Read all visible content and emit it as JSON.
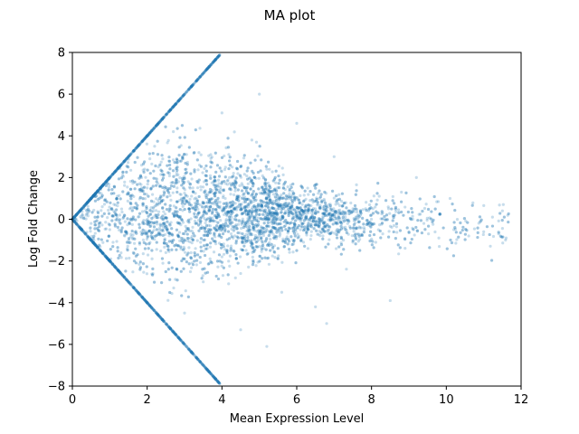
{
  "chart_data": {
    "type": "scatter",
    "title": "MA plot",
    "xlabel": "Mean Expression Level",
    "ylabel": "Log Fold Change",
    "xlim": [
      0,
      12
    ],
    "ylim": [
      -8,
      8
    ],
    "xticks": [
      "0",
      "2",
      "4",
      "6",
      "8",
      "10",
      "12"
    ],
    "yticks": [
      "8",
      "6",
      "4",
      "2",
      "0",
      "−2",
      "−4",
      "−6",
      "−8"
    ],
    "grid": false,
    "legend": "none",
    "point_color": "#1f77b4",
    "point_alpha": 0.25,
    "series": [
      {
        "points": [
          [
            0.3,
            0.1
          ],
          [
            0.5,
            -0.2
          ],
          [
            0.8,
            0.6
          ],
          [
            1.0,
            -0.5
          ],
          [
            1.2,
            1.1
          ],
          [
            1.4,
            -0.8
          ],
          [
            1.6,
            0.4
          ],
          [
            1.8,
            -1.2
          ],
          [
            2.0,
            1.5
          ],
          [
            2.1,
            -0.3
          ],
          [
            2.3,
            0.9
          ],
          [
            2.5,
            -1.6
          ],
          [
            2.6,
            2.2
          ],
          [
            2.8,
            0.2
          ],
          [
            3.0,
            -0.7
          ],
          [
            3.1,
            1.8
          ],
          [
            3.2,
            -2.1
          ],
          [
            3.3,
            0.5
          ],
          [
            3.4,
            2.6
          ],
          [
            3.5,
            -1.0
          ],
          [
            3.6,
            0.8
          ],
          [
            3.7,
            3.1
          ],
          [
            3.8,
            -0.4
          ],
          [
            3.9,
            1.4
          ],
          [
            4.0,
            -1.8
          ],
          [
            4.1,
            0.3
          ],
          [
            4.2,
            2.0
          ],
          [
            4.3,
            -0.9
          ],
          [
            4.4,
            1.1
          ],
          [
            4.5,
            -2.6
          ],
          [
            4.6,
            0.6
          ],
          [
            4.7,
            1.7
          ],
          [
            4.8,
            -0.2
          ],
          [
            4.9,
            0.9
          ],
          [
            5.0,
            -1.3
          ],
          [
            5.1,
            0.4
          ],
          [
            5.2,
            2.4
          ],
          [
            5.3,
            -0.6
          ],
          [
            5.4,
            0.1
          ],
          [
            5.5,
            -1.9
          ],
          [
            5.6,
            0.7
          ],
          [
            5.7,
            -0.3
          ],
          [
            5.8,
            1.2
          ],
          [
            5.9,
            -1.0
          ],
          [
            6.0,
            0.2
          ],
          [
            6.1,
            -0.5
          ],
          [
            6.2,
            0.9
          ],
          [
            6.3,
            -1.4
          ],
          [
            6.4,
            -0.1
          ],
          [
            6.5,
            0.5
          ],
          [
            6.7,
            -0.8
          ],
          [
            6.9,
            0.3
          ],
          [
            7.1,
            -0.6
          ],
          [
            7.3,
            0.1
          ],
          [
            7.5,
            -1.1
          ],
          [
            7.8,
            -0.4
          ],
          [
            8.0,
            0.2
          ],
          [
            8.3,
            -0.7
          ],
          [
            8.6,
            -0.3
          ],
          [
            9.0,
            -0.6
          ],
          [
            9.4,
            -0.2
          ],
          [
            9.8,
            -0.9
          ],
          [
            10.2,
            -0.5
          ],
          [
            10.6,
            -0.8
          ],
          [
            11.0,
            -0.6
          ],
          [
            11.4,
            -0.7
          ],
          [
            11.6,
            -0.9
          ],
          [
            2.2,
            3.5
          ],
          [
            2.7,
            4.2
          ],
          [
            3.0,
            -4.5
          ],
          [
            4.0,
            5.1
          ],
          [
            4.5,
            -5.3
          ],
          [
            5.0,
            6.0
          ],
          [
            5.2,
            -6.1
          ],
          [
            6.0,
            4.6
          ],
          [
            6.5,
            -4.2
          ],
          [
            7.0,
            3.0
          ],
          [
            3.5,
            -3.0
          ],
          [
            4.8,
            3.8
          ],
          [
            5.6,
            -3.5
          ],
          [
            6.8,
            -5.0
          ],
          [
            8.5,
            -3.9
          ],
          [
            9.2,
            2.0
          ],
          [
            10.1,
            1.0
          ],
          [
            8.8,
            1.3
          ]
        ]
      }
    ],
    "boundary_edge": {
      "description": "dense diagonal edge points where |log fold change| = 2 × mean expression",
      "x_max": 3.95
    }
  }
}
